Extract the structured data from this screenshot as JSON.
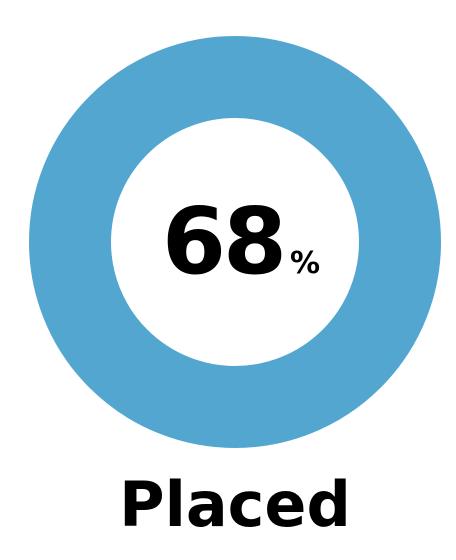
{
  "chart_data": {
    "type": "pie",
    "value": 68,
    "unit": "%",
    "label": "Placed",
    "max": 100
  },
  "colors": {
    "ring": "#52a6cf",
    "text": "#000000",
    "background": "#ffffff"
  }
}
